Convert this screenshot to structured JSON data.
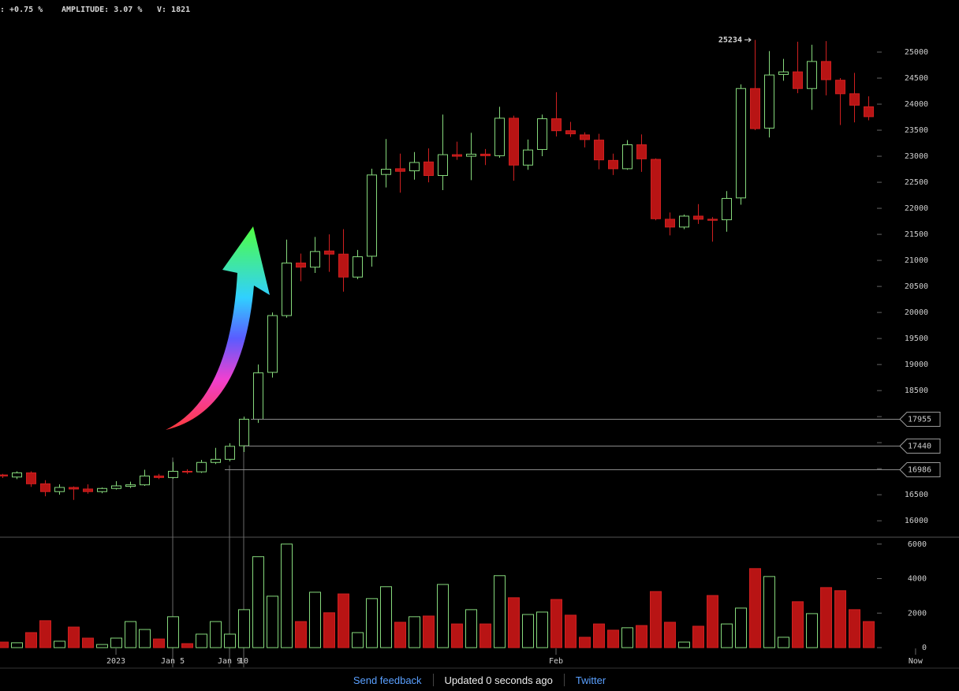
{
  "header": {
    "stats": [
      ": +0.75 %",
      "AMPLITUDE: 3.07 %",
      "V: 1821"
    ]
  },
  "chart_data": {
    "type": "candlestick",
    "up_color": "#86d97c",
    "down_color": "#b81414",
    "open": [
      16880,
      16840,
      16920,
      16710,
      16560,
      16640,
      16610,
      16560,
      16620,
      16660,
      16690,
      16860,
      16830,
      16950,
      16940,
      17120,
      17180,
      17440,
      17950,
      18850,
      19940,
      20950,
      20870,
      21180,
      21120,
      20680,
      21080,
      22650,
      22760,
      22720,
      22890,
      22630,
      23030,
      23000,
      23040,
      23010,
      23730,
      22830,
      23130,
      23720,
      23490,
      23410,
      23310,
      22920,
      22760,
      23220,
      22940,
      21790,
      21640,
      21850,
      21790,
      21780,
      22200,
      24300,
      23540,
      24570,
      24620,
      24300,
      24820,
      24460,
      24200,
      23950
    ],
    "high": [
      16900,
      16950,
      16950,
      16780,
      16700,
      16660,
      16700,
      16640,
      16760,
      16750,
      16980,
      16900,
      17130,
      16990,
      17170,
      17400,
      17490,
      18000,
      19000,
      20000,
      21400,
      21130,
      21450,
      21500,
      21600,
      21200,
      22760,
      23330,
      23050,
      23080,
      23150,
      23800,
      23280,
      23450,
      23140,
      23950,
      23780,
      23320,
      23800,
      24230,
      23660,
      23460,
      23430,
      23050,
      23310,
      23420,
      22960,
      21920,
      21880,
      22080,
      21830,
      22330,
      24380,
      25234,
      25020,
      24870,
      25200,
      25140,
      25210,
      24500,
      24600,
      24150
    ],
    "low": [
      16820,
      16800,
      16650,
      16470,
      16500,
      16400,
      16520,
      16530,
      16600,
      16630,
      16670,
      16800,
      16810,
      16900,
      16920,
      17090,
      17140,
      17320,
      17880,
      18750,
      19900,
      20600,
      20760,
      20780,
      20400,
      20640,
      20880,
      22400,
      22300,
      22550,
      22500,
      22350,
      22930,
      22540,
      22830,
      22970,
      22530,
      22740,
      23000,
      23380,
      23370,
      23170,
      22750,
      22640,
      22740,
      22700,
      21770,
      21480,
      21600,
      21700,
      21360,
      21550,
      22070,
      23500,
      23360,
      24450,
      24210,
      23890,
      24170,
      23600,
      23650,
      23690
    ],
    "close": [
      16860,
      16920,
      16710,
      16560,
      16640,
      16610,
      16560,
      16620,
      16670,
      16690,
      16860,
      16830,
      16950,
      16940,
      17120,
      17180,
      17430,
      17950,
      18840,
      19940,
      20950,
      20870,
      21170,
      21120,
      20680,
      21070,
      22640,
      22750,
      22710,
      22880,
      22630,
      23030,
      23000,
      23040,
      23010,
      23730,
      22830,
      23120,
      23720,
      23490,
      23430,
      23320,
      22930,
      22760,
      23220,
      22950,
      21800,
      21640,
      21850,
      21790,
      21770,
      22190,
      24300,
      23530,
      24560,
      24620,
      24300,
      24820,
      24470,
      24200,
      23980,
      23760
    ],
    "volume": [
      320,
      280,
      870,
      1560,
      370,
      1190,
      550,
      180,
      550,
      1510,
      1050,
      500,
      1790,
      230,
      780,
      1510,
      780,
      2200,
      5270,
      2980,
      6000,
      1510,
      3210,
      2020,
      3110,
      870,
      2840,
      3530,
      1470,
      1790,
      1830,
      3660,
      1370,
      2200,
      1370,
      4170,
      2890,
      1920,
      2060,
      2790,
      1880,
      600,
      1370,
      1010,
      1150,
      1280,
      3250,
      1470,
      320,
      1240,
      3020,
      1370,
      2290,
      4580,
      4120,
      600,
      2660,
      1970,
      3480,
      3300,
      2200,
      1510
    ],
    "xlim": [
      -0.17,
      67.39
    ],
    "xticks": [
      {
        "value": 8,
        "label": "2023"
      },
      {
        "value": 12,
        "label": "Jan 5"
      },
      {
        "value": 16,
        "label": "Jan 9"
      },
      {
        "value": 17,
        "label": "10"
      },
      {
        "value": 39,
        "label": "Feb"
      },
      {
        "value": 64.33,
        "label": "Now"
      }
    ],
    "ylim": [
      15700,
      26000
    ],
    "yticks": [
      16000,
      16500,
      17000,
      17500,
      18000,
      18500,
      19000,
      19500,
      20000,
      20500,
      21000,
      21500,
      22000,
      22500,
      23000,
      23500,
      24000,
      24500,
      25000
    ],
    "volume_ylim": [
      0,
      6400
    ],
    "volume_yticks": [
      0,
      2000,
      4000,
      6000
    ],
    "price_lines": [
      17955,
      17440,
      16986
    ],
    "max_index": 53
  },
  "footer": {
    "links": [
      "Send feedback",
      "Updated 0 seconds ago",
      "Twitter"
    ]
  }
}
